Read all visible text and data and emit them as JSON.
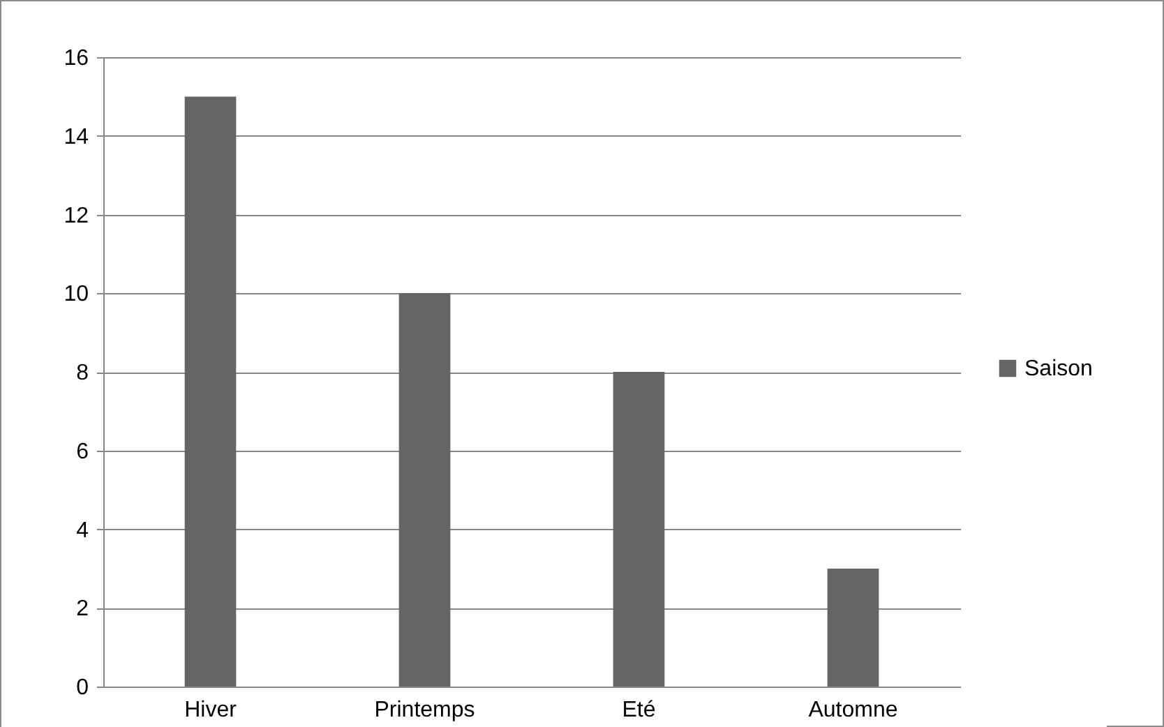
{
  "chart_data": {
    "type": "bar",
    "categories": [
      "Hiver",
      "Printemps",
      "Eté",
      "Automne"
    ],
    "series": [
      {
        "name": "Saison",
        "color": "#646464",
        "values": [
          15,
          10,
          8,
          3
        ]
      }
    ],
    "ylim": [
      0,
      16
    ],
    "yticks": [
      0,
      2,
      4,
      6,
      8,
      10,
      12,
      14,
      16
    ],
    "grid": "y",
    "legend": "right"
  }
}
